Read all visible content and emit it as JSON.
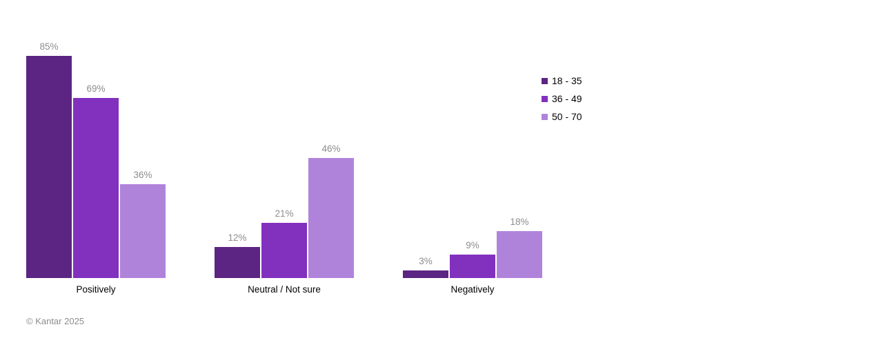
{
  "chart_data": {
    "type": "bar",
    "title": "",
    "categories": [
      "Positively",
      "Neutral / Not sure",
      "Negatively"
    ],
    "series": [
      {
        "name": "18 - 35",
        "color": "#5c2483",
        "values": [
          85,
          12,
          3
        ]
      },
      {
        "name": "36 - 49",
        "color": "#8230be",
        "values": [
          69,
          21,
          9
        ]
      },
      {
        "name": "50 - 70",
        "color": "#b083db",
        "values": [
          36,
          46,
          18
        ]
      }
    ],
    "value_suffix": "%",
    "xlabel": "",
    "ylabel": "",
    "ylim": [
      0,
      100
    ],
    "grid": false,
    "axis_lines": false,
    "legend_position": "top-right",
    "value_label_color": "#8c8c8c",
    "category_label_color": "#000000",
    "background_color": "#ffffff"
  },
  "footer": {
    "copyright": "© Kantar 2025"
  }
}
